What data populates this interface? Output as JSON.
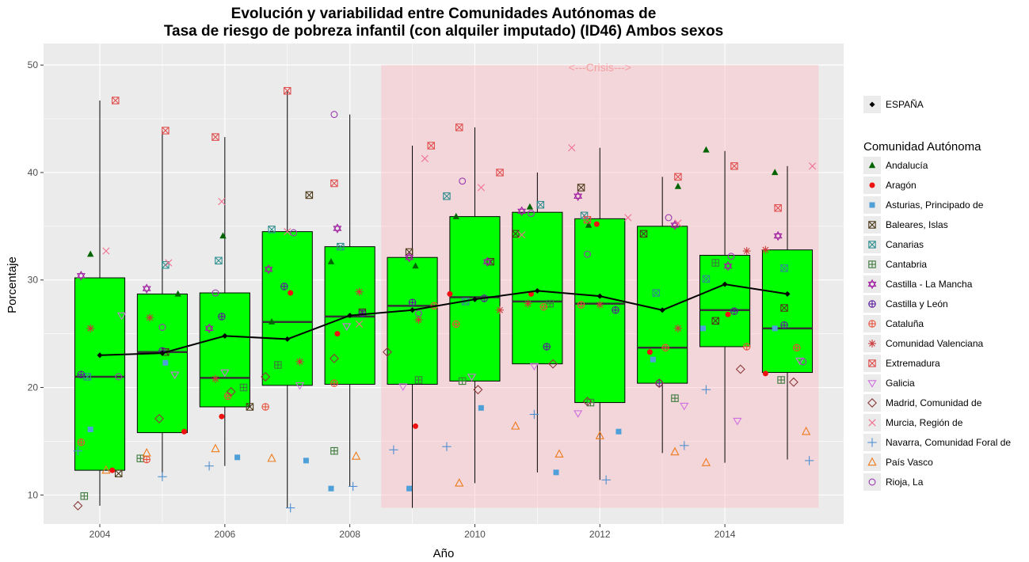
{
  "chart_data": {
    "type": "box",
    "title_line1": "Evolución y variabilidad entre Comunidades Autónomas de",
    "title_line2": "Tasa de riesgo de pobreza infantil (con alquiler imputado) (ID46) Ambos sexos",
    "xlabel": "Año",
    "ylabel": "Porcentaje",
    "xlim": [
      2003.1,
      2015.9
    ],
    "ylim": [
      7.3,
      52
    ],
    "x_ticks": [
      2004,
      2006,
      2008,
      2010,
      2012,
      2014
    ],
    "y_ticks": [
      10,
      20,
      30,
      40,
      50
    ],
    "grid": true,
    "colors": {
      "panel_bg": "#ebebeb",
      "grid": "#ffffff",
      "box_fill": "#00ff00",
      "crisis_fill": "#ffb6c1",
      "spain_line": "#000000"
    },
    "crisis": {
      "label": "<---Crisis--->",
      "x_start": 2008.5,
      "x_end": 2015.5,
      "y_start": 8.8,
      "y_end": 50
    },
    "boxes": [
      {
        "x": 2004,
        "min": 9.0,
        "q1": 12.3,
        "median": 21.0,
        "q3": 30.2,
        "max": 46.7
      },
      {
        "x": 2005,
        "min": 11.7,
        "q1": 15.8,
        "median": 23.3,
        "q3": 28.7,
        "max": 43.9
      },
      {
        "x": 2006,
        "min": 12.7,
        "q1": 18.2,
        "median": 20.9,
        "q3": 28.8,
        "max": 43.3
      },
      {
        "x": 2007,
        "min": 8.8,
        "q1": 20.2,
        "median": 26.1,
        "q3": 34.5,
        "max": 47.6
      },
      {
        "x": 2008,
        "min": 10.8,
        "q1": 20.3,
        "median": 26.6,
        "q3": 33.1,
        "max": 45.4
      },
      {
        "x": 2009,
        "min": 8.8,
        "q1": 20.3,
        "median": 27.6,
        "q3": 32.1,
        "max": 42.5
      },
      {
        "x": 2010,
        "min": 11.1,
        "q1": 20.6,
        "median": 28.4,
        "q3": 35.9,
        "max": 44.2
      },
      {
        "x": 2011,
        "min": 12.1,
        "q1": 22.2,
        "median": 28.0,
        "q3": 36.3,
        "max": 40.0
      },
      {
        "x": 2012,
        "min": 11.4,
        "q1": 18.6,
        "median": 27.8,
        "q3": 35.7,
        "max": 42.3
      },
      {
        "x": 2013,
        "min": 13.9,
        "q1": 20.4,
        "median": 23.7,
        "q3": 35.0,
        "max": 39.6
      },
      {
        "x": 2014,
        "min": 13.0,
        "q1": 23.8,
        "median": 27.2,
        "q3": 32.3,
        "max": 42.0
      },
      {
        "x": 2015,
        "min": 13.3,
        "q1": 21.4,
        "median": 25.5,
        "q3": 32.8,
        "max": 40.6
      }
    ],
    "spain": {
      "name": "ESPAÑA",
      "x": [
        2004,
        2005,
        2006,
        2007,
        2008,
        2009,
        2010,
        2011,
        2012,
        2013,
        2014,
        2015
      ],
      "y": [
        23.0,
        23.2,
        24.8,
        24.5,
        26.7,
        27.2,
        28.2,
        29.0,
        28.5,
        27.2,
        29.6,
        28.7
      ]
    },
    "legend_title": "Comunidad Autónoma",
    "series": [
      {
        "name": "Andalucía",
        "shape": "triangle-filled",
        "color": "#006400",
        "x": [
          2003.85,
          2005.25,
          2005.97,
          2006.75,
          2007.7,
          2009.05,
          2009.7,
          2010.88,
          2011.82,
          2013.25,
          2013.7,
          2014.8
        ],
        "y": [
          32.4,
          28.7,
          34.1,
          26.1,
          31.7,
          31.3,
          35.9,
          36.8,
          35.1,
          38.7,
          42.1,
          40.0
        ]
      },
      {
        "name": "Aragón",
        "shape": "circle-filled",
        "color": "#ee1111",
        "x": [
          2004.2,
          2005.35,
          2005.95,
          2007.05,
          2007.8,
          2009.05,
          2009.6,
          2010.9,
          2011.95,
          2012.8,
          2014.05,
          2014.65
        ],
        "y": [
          12.3,
          15.9,
          17.3,
          28.8,
          25.0,
          16.4,
          28.7,
          28.7,
          35.2,
          23.3,
          26.8,
          21.3
        ]
      },
      {
        "name": "Asturias, Principado de",
        "shape": "square-filled",
        "color": "#4f9fd9",
        "x": [
          2003.85,
          2005.05,
          2006.2,
          2007.3,
          2007.7,
          2008.95,
          2010.1,
          2011.3,
          2012.3,
          2012.85,
          2013.65,
          2014.8
        ],
        "y": [
          16.1,
          22.3,
          13.5,
          13.2,
          10.6,
          10.6,
          18.1,
          12.1,
          15.9,
          22.6,
          25.5,
          25.5
        ]
      },
      {
        "name": "Baleares, Islas",
        "shape": "square-x",
        "color": "#4d3a1a",
        "x": [
          2004.3,
          2005.05,
          2006.4,
          2007.35,
          2008.2,
          2008.95,
          2010.25,
          2010.65,
          2011.7,
          2012.7,
          2013.85,
          2014.95
        ],
        "y": [
          12.0,
          23.3,
          18.2,
          37.9,
          27.0,
          32.6,
          31.7,
          34.3,
          38.6,
          34.3,
          26.2,
          27.4
        ]
      },
      {
        "name": "Canarias",
        "shape": "square-x",
        "color": "#2f8f8f",
        "x": [
          2003.8,
          2005.05,
          2005.9,
          2006.75,
          2007.85,
          2009.55,
          2009.85,
          2011.05,
          2011.75,
          2012.9,
          2013.7,
          2014.95
        ],
        "y": [
          21.0,
          31.4,
          31.8,
          34.7,
          33.1,
          37.8,
          28.0,
          37.0,
          36.0,
          28.8,
          30.1,
          31.1
        ]
      },
      {
        "name": "Cantabria",
        "shape": "square-plus",
        "color": "#3d7a3d",
        "x": [
          2003.75,
          2004.65,
          2006.3,
          2006.85,
          2007.75,
          2009.1,
          2009.8,
          2011.2,
          2011.85,
          2013.2,
          2013.85,
          2014.9
        ],
        "y": [
          9.9,
          13.4,
          20.0,
          22.1,
          14.1,
          20.7,
          20.6,
          27.8,
          18.6,
          19.0,
          31.6,
          20.7
        ]
      },
      {
        "name": "Castilla - La Mancha",
        "shape": "star6",
        "color": "#a020a0",
        "x": [
          2003.7,
          2004.75,
          2005.75,
          2006.7,
          2007.8,
          2008.95,
          2010.2,
          2010.75,
          2011.65,
          2013.2,
          2014.05,
          2014.85
        ],
        "y": [
          30.4,
          29.2,
          25.5,
          31.0,
          34.8,
          32.1,
          31.7,
          36.4,
          37.8,
          35.1,
          31.3,
          34.1
        ]
      },
      {
        "name": "Castilla y León",
        "shape": "circle-plus",
        "color": "#5a1a9a",
        "x": [
          2003.7,
          2005.0,
          2005.95,
          2006.95,
          2008.2,
          2009.0,
          2010.15,
          2011.15,
          2012.25,
          2012.95,
          2014.15,
          2014.95
        ],
        "y": [
          21.2,
          23.4,
          26.6,
          29.4,
          26.9,
          27.9,
          28.3,
          23.8,
          27.2,
          20.4,
          27.1,
          25.8
        ]
      },
      {
        "name": "Cataluña",
        "shape": "circle-plus",
        "color": "#e8503a",
        "x": [
          2003.7,
          2004.75,
          2006.05,
          2006.65,
          2007.75,
          2009.35,
          2009.7,
          2011.1,
          2011.7,
          2013.05,
          2014.35,
          2015.15
        ],
        "y": [
          14.9,
          13.3,
          19.2,
          18.2,
          20.4,
          27.6,
          25.9,
          27.5,
          27.7,
          23.7,
          23.8,
          23.7
        ]
      },
      {
        "name": "Comunidad Valenciana",
        "shape": "asterisk",
        "color": "#c83a3a",
        "x": [
          2003.85,
          2004.8,
          2005.85,
          2007.2,
          2008.15,
          2009.1,
          2010.4,
          2010.85,
          2012.0,
          2013.25,
          2014.35,
          2014.65
        ],
        "y": [
          25.5,
          26.5,
          20.8,
          22.4,
          28.9,
          26.3,
          27.2,
          27.8,
          27.7,
          25.5,
          32.7,
          32.8
        ]
      },
      {
        "name": "Extremadura",
        "shape": "square-x",
        "color": "#e05050",
        "x": [
          2004.25,
          2005.05,
          2005.85,
          2007.0,
          2007.75,
          2009.3,
          2009.75,
          2010.4,
          2011.8,
          2013.25,
          2014.15,
          2014.85
        ],
        "y": [
          46.7,
          43.9,
          43.3,
          47.6,
          39.0,
          42.5,
          44.2,
          40.0,
          35.6,
          39.6,
          40.6,
          36.7
        ]
      },
      {
        "name": "Galicia",
        "shape": "triangle-down",
        "color": "#d070e0",
        "x": [
          2004.35,
          2005.2,
          2006.0,
          2007.2,
          2007.95,
          2008.85,
          2009.95,
          2010.95,
          2011.65,
          2013.35,
          2014.2,
          2015.2
        ],
        "y": [
          26.7,
          21.2,
          21.4,
          20.2,
          25.7,
          20.1,
          21.0,
          22.0,
          17.6,
          18.3,
          16.9,
          22.5
        ]
      },
      {
        "name": "Madrid, Comunidad de",
        "shape": "diamond",
        "color": "#8b3a3a",
        "x": [
          2003.65,
          2004.95,
          2006.1,
          2006.65,
          2007.75,
          2008.6,
          2010.05,
          2011.25,
          2011.8,
          2012.95,
          2014.25,
          2015.1
        ],
        "y": [
          9.0,
          17.1,
          19.6,
          21.0,
          22.7,
          23.3,
          19.8,
          22.2,
          18.7,
          20.4,
          21.7,
          20.5
        ]
      },
      {
        "name": "Murcia, Región de",
        "shape": "cross",
        "color": "#f07090",
        "x": [
          2004.1,
          2005.1,
          2005.95,
          2007.0,
          2008.15,
          2009.2,
          2010.1,
          2010.75,
          2011.55,
          2012.45,
          2013.25,
          2015.4
        ],
        "y": [
          32.7,
          31.6,
          37.3,
          34.5,
          25.9,
          41.3,
          38.6,
          34.2,
          42.3,
          35.8,
          35.3,
          40.6
        ]
      },
      {
        "name": "Navarra, Comunidad Foral de",
        "shape": "plus",
        "color": "#4f8fcf",
        "x": [
          2003.65,
          2005.0,
          2005.75,
          2007.05,
          2008.05,
          2008.7,
          2009.55,
          2010.95,
          2012.1,
          2013.35,
          2013.7,
          2015.35
        ],
        "y": [
          14.1,
          11.7,
          12.7,
          8.8,
          10.8,
          14.2,
          14.5,
          17.5,
          11.4,
          14.6,
          19.8,
          13.2
        ]
      },
      {
        "name": "País Vasco",
        "shape": "triangle-open",
        "color": "#ee7a1a",
        "x": [
          2004.1,
          2004.75,
          2005.85,
          2006.75,
          2008.1,
          2009.75,
          2010.65,
          2011.35,
          2012.0,
          2013.2,
          2013.7,
          2015.3
        ],
        "y": [
          12.3,
          13.9,
          14.3,
          13.4,
          13.6,
          11.1,
          16.4,
          13.8,
          15.5,
          14.0,
          13.0,
          15.9
        ]
      },
      {
        "name": "Rioja, La",
        "shape": "circle-open",
        "color": "#9a3ab0",
        "x": [
          2004.3,
          2005.0,
          2005.85,
          2007.1,
          2007.75,
          2009.1,
          2009.8,
          2010.9,
          2011.8,
          2013.1,
          2014.1,
          2015.25
        ],
        "y": [
          21.0,
          25.6,
          28.8,
          34.4,
          45.4,
          26.9,
          39.2,
          36.2,
          32.4,
          35.8,
          32.2,
          22.4
        ]
      }
    ]
  }
}
